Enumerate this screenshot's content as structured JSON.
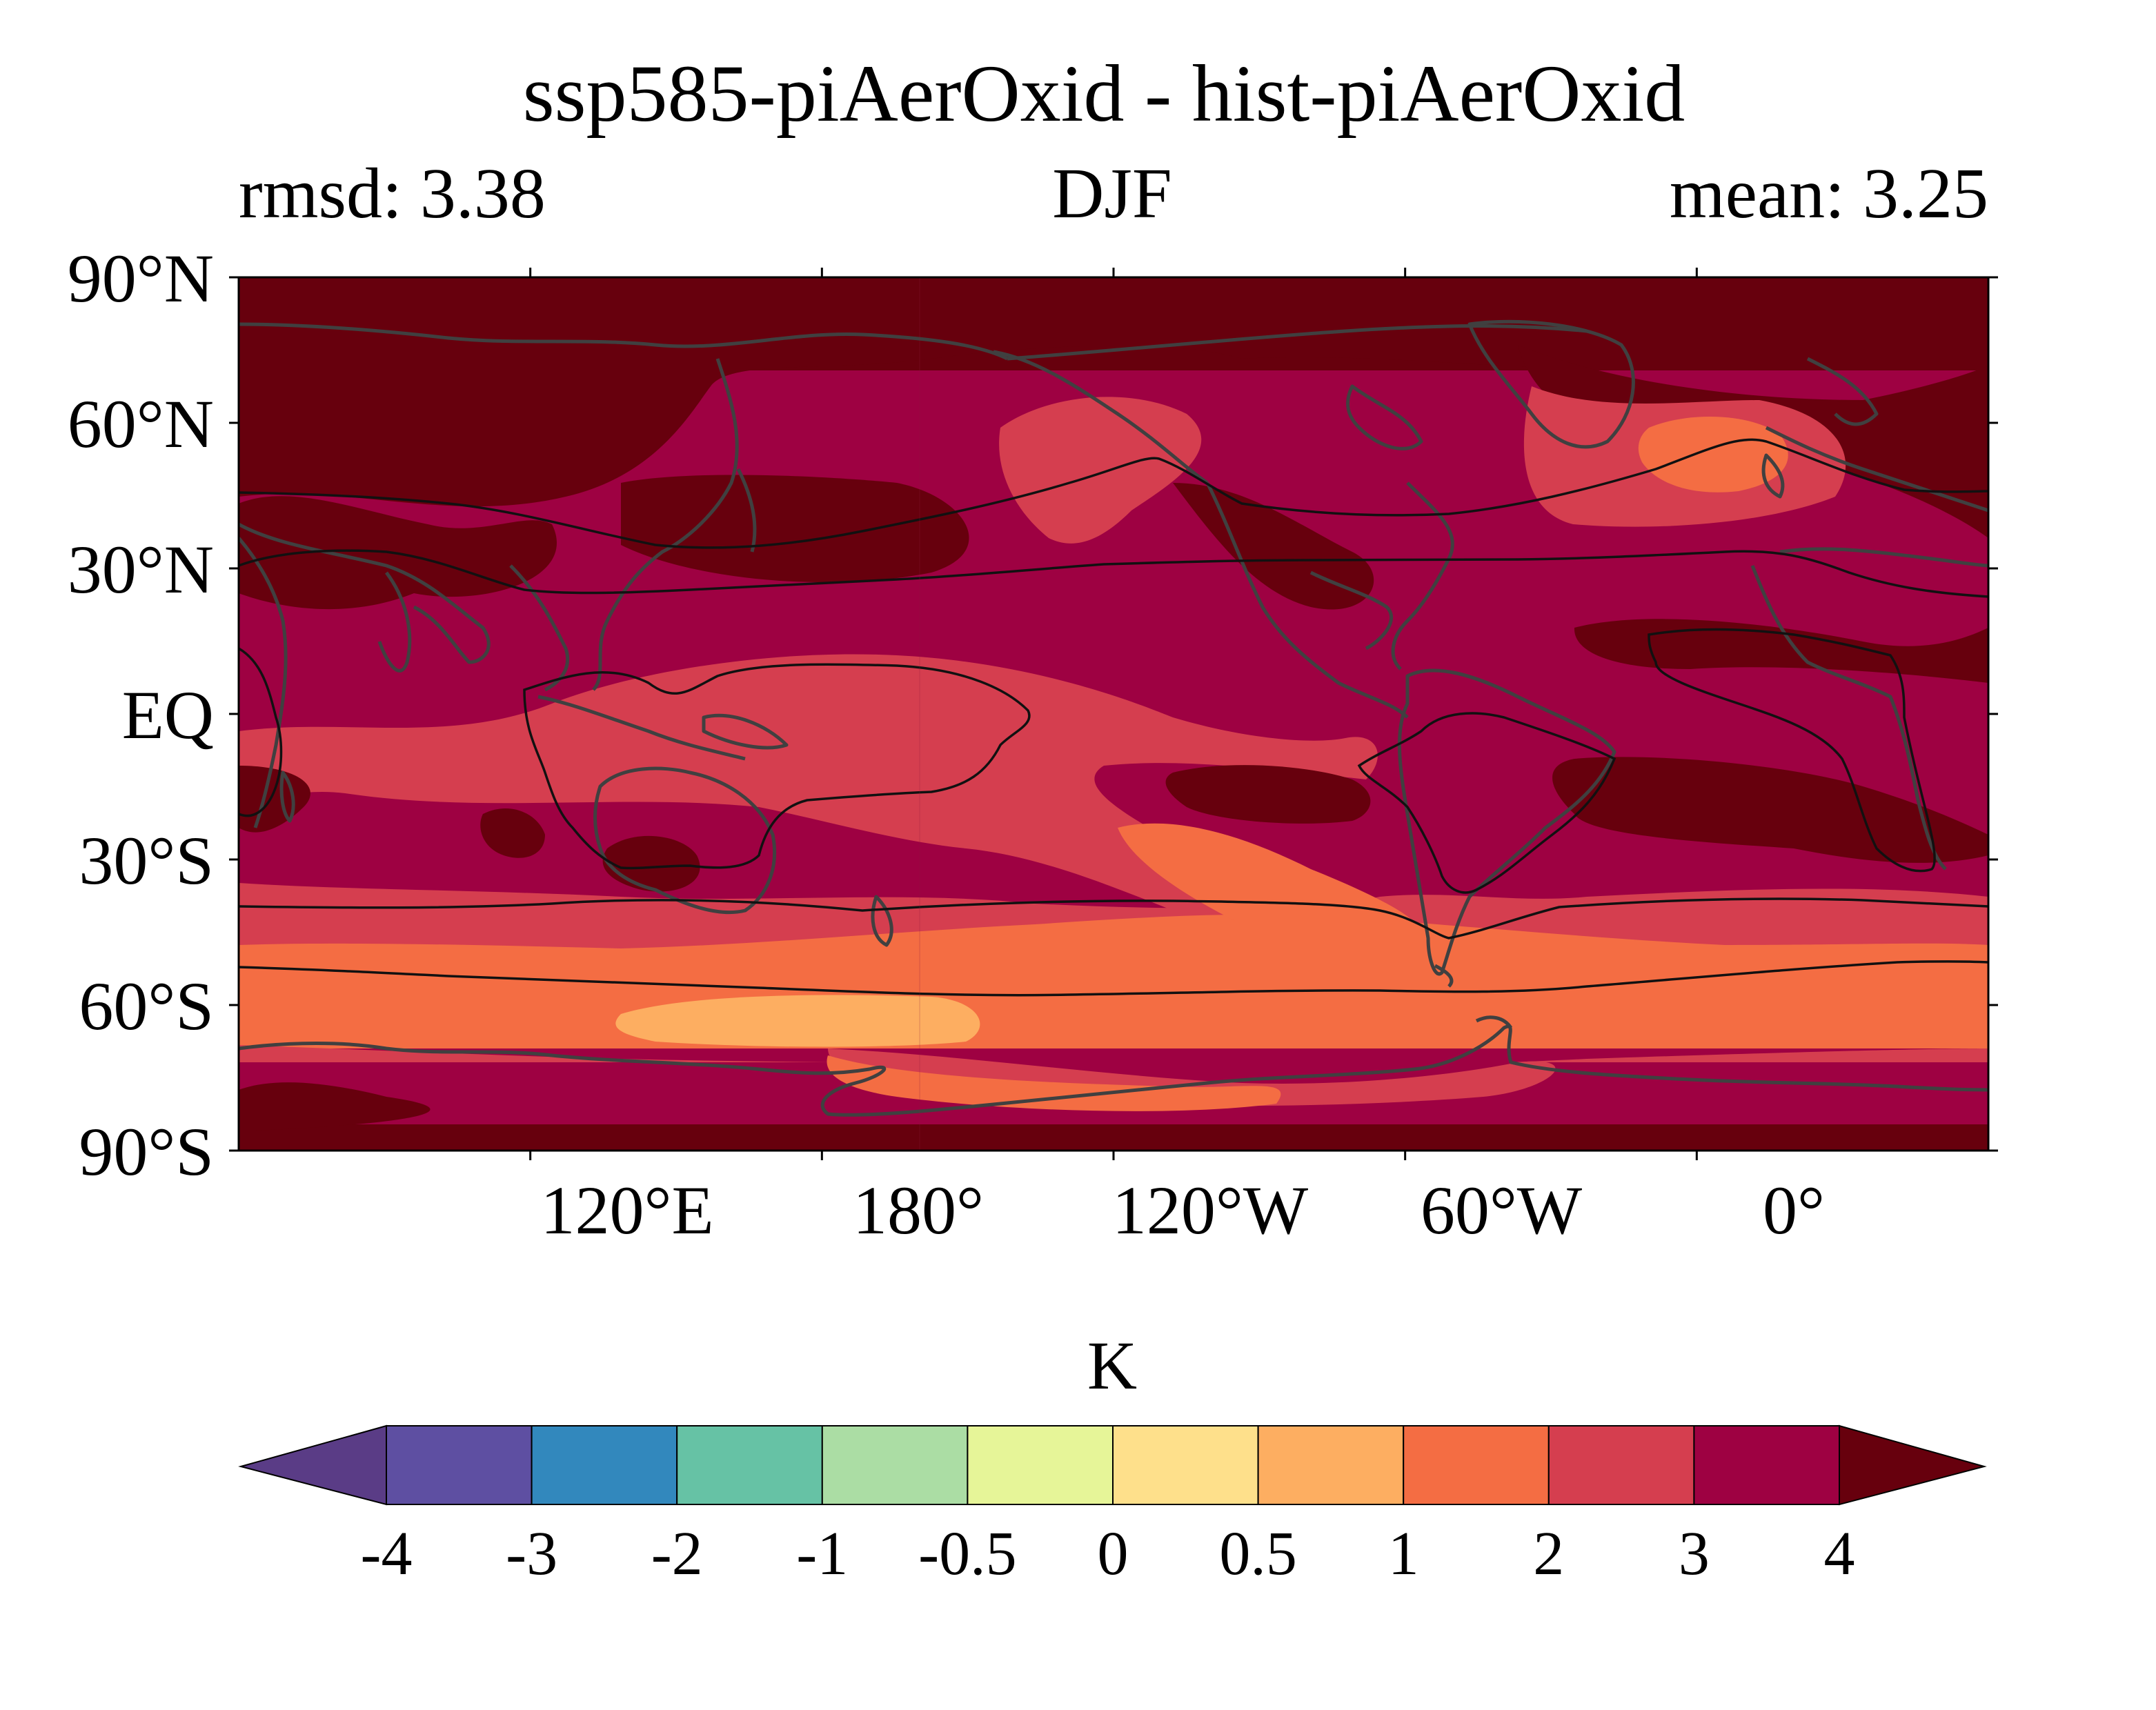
{
  "title": "ssp585-piAerOxid - hist-piAerOxid",
  "subtitle_left": "rmsd: 3.38",
  "subtitle_center": "DJF",
  "subtitle_right": "mean: 3.25",
  "map": {
    "projection": "PlateCarree",
    "lon_range": [
      60,
      420
    ],
    "lat_range": [
      -90,
      90
    ],
    "y_ticks": [
      "90°N",
      "60°N",
      "30°N",
      "EQ",
      "30°S",
      "60°S",
      "90°S"
    ],
    "x_ticks": [
      "120°E",
      "180°",
      "120°W",
      "60°W",
      "0°"
    ],
    "coastline_color": "#404040",
    "contour_line_color": "#111111"
  },
  "colorbar": {
    "label": "K",
    "levels": [
      "-4",
      "-3",
      "-2",
      "-1",
      "-0.5",
      "0",
      "0.5",
      "1",
      "2",
      "3",
      "4"
    ],
    "colors": [
      "#5e4fa2",
      "#3288bd",
      "#66c2a5",
      "#abdda4",
      "#e6f598",
      "#fee08b",
      "#fdae61",
      "#f46d43",
      "#d53e4f",
      "#9e0142"
    ],
    "under_color": "#5a3c86",
    "over_color": "#67000d"
  },
  "chart_data": {
    "type": "heatmap",
    "title": "ssp585-piAerOxid - hist-piAerOxid",
    "season": "DJF",
    "units": "K",
    "rmsd": 3.38,
    "mean": 3.25,
    "lon_range": [
      60,
      420
    ],
    "lat_range": [
      -90,
      90
    ],
    "levels": [
      -4,
      -3,
      -2,
      -1,
      -0.5,
      0,
      0.5,
      1,
      2,
      3,
      4
    ],
    "zonal_bands_approx": [
      {
        "lat": [
          70,
          90
        ],
        "value_range": "> 4"
      },
      {
        "lat": [
          30,
          70
        ],
        "value_range": "3 to > 4"
      },
      {
        "lat": [
          -30,
          30
        ],
        "value_range": "2 to 4"
      },
      {
        "lat": [
          -50,
          -30
        ],
        "value_range": "2 to 3"
      },
      {
        "lat": [
          -70,
          -50
        ],
        "value_range": "0.5 to 2"
      },
      {
        "lat": [
          -90,
          -70
        ],
        "value_range": "3 to > 4"
      }
    ]
  }
}
